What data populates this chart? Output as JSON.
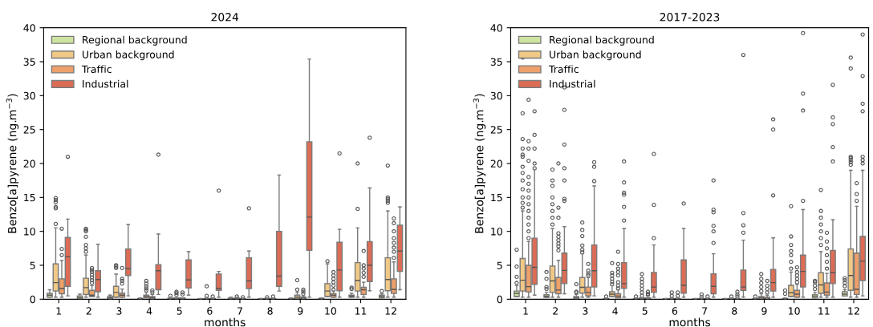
{
  "chart_data": [
    {
      "type": "box",
      "title": "2024",
      "xlabel": "months",
      "ylabel": "Benzo[a]pyrene (ng.m$^{−3}$)",
      "categories": [
        "1",
        "2",
        "3",
        "4",
        "5",
        "6",
        "7",
        "8",
        "9",
        "10",
        "11",
        "12"
      ],
      "ylim": [
        0,
        40
      ],
      "yticks": [
        0,
        5,
        10,
        15,
        20,
        25,
        30,
        35,
        40
      ],
      "legend": "top left",
      "grid": false,
      "series": [
        {
          "name": "Regional background",
          "color": "#cfe3a0",
          "boxes": [
            {
              "low": 0.3,
              "q1": 0.3,
              "median": 0.6,
              "q3": 0.87,
              "high": 1.4
            },
            {
              "low": 0.1,
              "q1": 0.1,
              "median": 0.25,
              "q3": 0.5,
              "high": 0.75
            },
            {
              "low": 0.05,
              "q1": 0.05,
              "median": 0.2,
              "q3": 0.4,
              "high": 0.6
            },
            {
              "low": 0.02,
              "q1": 0.02,
              "median": 0.05,
              "q3": 0.1,
              "high": 0.2
            },
            {
              "low": 0.02,
              "q1": 0.02,
              "median": 0.05,
              "q3": 0.15,
              "high": 0.3,
              "outliers": [
                0.5
              ]
            },
            {
              "low": 0,
              "q1": 0,
              "median": 0.02,
              "q3": 0.05,
              "high": 0.1
            },
            {
              "low": 0.02,
              "q1": 0.02,
              "median": 0.05,
              "q3": 0.15,
              "high": 0.3
            },
            {
              "low": 0.01,
              "q1": 0.01,
              "median": 0.03,
              "q3": 0.06,
              "high": 0.1
            },
            {
              "low": 0.02,
              "q1": 0.02,
              "median": 0.05,
              "q3": 0.1,
              "high": 0.2
            },
            {
              "low": 0.02,
              "q1": 0.02,
              "median": 0.05,
              "q3": 0.12,
              "high": 0.2
            },
            {
              "low": 0.3,
              "q1": 0.3,
              "median": 0.45,
              "q3": 0.6,
              "high": 0.9,
              "outliers": [
                1.5,
                1.7
              ]
            },
            {
              "low": 0.2,
              "q1": 0.2,
              "median": 0.4,
              "q3": 0.6,
              "high": 0.8,
              "outliers": [
                1.2
              ]
            }
          ]
        },
        {
          "name": "Urban background",
          "color": "#f1c986",
          "boxes": [
            {
              "low": 0.3,
              "q1": 1.2,
              "median": 2.45,
              "q3": 5.2,
              "high": 10.5,
              "outliers": [
                11.1,
                13.4,
                13.6,
                14.3,
                14.6,
                14.9
              ]
            },
            {
              "low": 0.3,
              "q1": 0.7,
              "median": 1.7,
              "q3": 3.1,
              "high": 6.5,
              "outliers": [
                7.0,
                7.5,
                8.0,
                9.2,
                10.0,
                10.2,
                10.4
              ]
            },
            {
              "low": 0.3,
              "q1": 0.3,
              "median": 1.0,
              "q3": 1.9,
              "high": 3.7,
              "outliers": [
                4.6,
                4.8,
                5.0
              ]
            },
            {
              "low": 0.2,
              "q1": 0.2,
              "median": 0.4,
              "q3": 0.6,
              "high": 1.0,
              "outliers": [
                1.3,
                1.6,
                1.9,
                2.3,
                2.7
              ]
            },
            {
              "low": 0.02,
              "q1": 0.02,
              "median": 0.1,
              "q3": 0.2,
              "high": 0.2,
              "outliers": [
                0.6,
                0.9,
                1.1
              ]
            },
            {
              "low": 0.02,
              "q1": 0.02,
              "median": 0.05,
              "q3": 0.1,
              "high": 0.2,
              "outliers": [
                0.5,
                1.9
              ]
            },
            {
              "low": 0.02,
              "q1": 0.02,
              "median": 0.05,
              "q3": 0.15,
              "high": 0.3,
              "outliers": [
                0.4
              ]
            },
            {
              "low": 0.02,
              "q1": 0.02,
              "median": 0.05,
              "q3": 0.1,
              "high": 0.2,
              "outliers": [
                0.3
              ]
            },
            {
              "low": 0.1,
              "q1": 0.1,
              "median": 0.3,
              "q3": 0.6,
              "high": 1.0,
              "outliers": [
                1.4,
                2.8
              ]
            },
            {
              "low": 0.4,
              "q1": 0.4,
              "median": 1.2,
              "q3": 2.3,
              "high": 5.2,
              "outliers": [
                5.6
              ]
            },
            {
              "low": 0.3,
              "q1": 1.2,
              "median": 2.75,
              "q3": 5.4,
              "high": 10.5,
              "outliers": [
                13.3,
                20.0
              ]
            },
            {
              "low": 0.3,
              "q1": 1.25,
              "median": 2.9,
              "q3": 6.1,
              "high": 13.0,
              "outliers": [
                14.2,
                14.5,
                14.8,
                15.0,
                19.7
              ]
            }
          ]
        },
        {
          "name": "Traffic",
          "color": "#eea06a",
          "boxes": [
            {
              "low": 0.3,
              "q1": 0.8,
              "median": 1.57,
              "q3": 3.0,
              "high": 5.7,
              "outliers": [
                6.5,
                7.4,
                10.4
              ]
            },
            {
              "low": 0.4,
              "q1": 0.4,
              "median": 0.6,
              "q3": 1.3,
              "high": 2.0,
              "outliers": [
                2.4,
                2.8,
                3.2,
                3.6,
                4.0,
                4.3,
                4.6
              ]
            },
            {
              "low": 0.3,
              "q1": 0.3,
              "median": 0.6,
              "q3": 0.9,
              "high": 1.5,
              "outliers": [
                2.3,
                2.7,
                3.0,
                4.6
              ]
            },
            {
              "low": 0.05,
              "q1": 0.05,
              "median": 0.2,
              "q3": 0.4,
              "high": 0.7,
              "outliers": [
                1.0,
                1.3
              ]
            },
            {
              "low": 0.02,
              "q1": 0.02,
              "median": 0.1,
              "q3": 0.2,
              "high": 0.2,
              "outliers": [
                0.7,
                1.0
              ]
            },
            {
              "low": 0.02,
              "q1": 0.02,
              "median": 0.05,
              "q3": 0.1,
              "high": 0.2,
              "outliers": [
                0.4
              ]
            },
            {
              "low": 0.02,
              "q1": 0.02,
              "median": 0.05,
              "q3": 0.1,
              "high": 0.2,
              "outliers": [
                0.3
              ]
            },
            {
              "low": 0.02,
              "q1": 0.02,
              "median": 0.05,
              "q3": 0.1,
              "high": 0.2,
              "outliers": [
                0.4
              ]
            },
            {
              "low": 0.05,
              "q1": 0.05,
              "median": 0.15,
              "q3": 0.3,
              "high": 0.5,
              "outliers": [
                0.8,
                1.1,
                1.4
              ]
            },
            {
              "low": 0.3,
              "q1": 0.3,
              "median": 0.6,
              "q3": 0.85,
              "high": 1.2,
              "outliers": [
                1.4,
                2.0,
                2.5,
                3.0,
                3.5,
                4.0
              ]
            },
            {
              "low": 0.3,
              "q1": 0.7,
              "median": 1.4,
              "q3": 1.75,
              "high": 2.5,
              "outliers": [
                3.3,
                3.9,
                4.5,
                5.0,
                7.1
              ]
            },
            {
              "low": 0.3,
              "q1": 0.85,
              "median": 1.45,
              "q3": 3.0,
              "high": 5.5,
              "outliers": [
                6.1,
                7.0,
                7.6,
                8.3,
                9.0,
                10.0,
                11.2,
                11.9
              ]
            }
          ]
        },
        {
          "name": "Industrial",
          "color": "#dc6c55",
          "boxes": [
            {
              "low": 0.5,
              "q1": 1.9,
              "median": 6.26,
              "q3": 9.1,
              "high": 11.8,
              "outliers": [
                21.0
              ]
            },
            {
              "low": 0.3,
              "q1": 1.1,
              "median": 2.9,
              "q3": 4.2,
              "high": 8.1
            },
            {
              "low": 0.5,
              "q1": 3.5,
              "median": 4.5,
              "q3": 7.4,
              "high": 11.0
            },
            {
              "low": 0.7,
              "q1": 1.4,
              "median": 4.2,
              "q3": 5.1,
              "high": 9.6,
              "outliers": [
                21.3
              ]
            },
            {
              "low": 0.6,
              "q1": 1.65,
              "median": 2.85,
              "q3": 5.8,
              "high": 7.0
            },
            {
              "low": 0.3,
              "q1": 1.3,
              "median": 1.6,
              "q3": 3.7,
              "high": 4.1,
              "outliers": [
                16.0
              ]
            },
            {
              "low": 0.3,
              "q1": 1.57,
              "median": 2.7,
              "q3": 6.1,
              "high": 7.1,
              "outliers": [
                13.4
              ]
            },
            {
              "low": 1.2,
              "q1": 1.9,
              "median": 3.4,
              "q3": 10.0,
              "high": 18.3
            },
            {
              "low": 0.3,
              "q1": 7.2,
              "median": 12.1,
              "q3": 23.2,
              "high": 35.4
            },
            {
              "low": 0.3,
              "q1": 1.25,
              "median": 4.3,
              "q3": 8.4,
              "high": 10.3,
              "outliers": [
                21.5
              ]
            },
            {
              "low": 1.25,
              "q1": 2.6,
              "median": 5.0,
              "q3": 8.5,
              "high": 16.4,
              "outliers": [
                23.8
              ]
            },
            {
              "low": 1.4,
              "q1": 4.1,
              "median": 7.1,
              "q3": 10.9,
              "high": 13.6
            }
          ]
        }
      ]
    },
    {
      "type": "box",
      "title": "2017-2023",
      "xlabel": "months",
      "ylabel": "Benzo[a]pyrene (ng.m$^{−3}$)",
      "categories": [
        "1",
        "2",
        "3",
        "4",
        "5",
        "6",
        "7",
        "8",
        "9",
        "10",
        "11",
        "12"
      ],
      "ylim": [
        0,
        40
      ],
      "yticks": [
        0,
        5,
        10,
        15,
        20,
        25,
        30,
        35,
        40
      ],
      "legend": "top left",
      "grid": false,
      "series": [
        {
          "name": "Regional background",
          "color": "#cfe3a0",
          "boxes": [
            {
              "low": 0.4,
              "q1": 0.4,
              "median": 0.87,
              "q3": 1.2,
              "high": 2.0,
              "outliers": [
                2.4,
                3.3,
                4.8,
                7.3
              ]
            },
            {
              "low": 0.28,
              "q1": 0.28,
              "median": 0.45,
              "q3": 0.67,
              "high": 1.0,
              "outliers": [
                1.5,
                1.8,
                3.0,
                4.0
              ]
            },
            {
              "low": 0.1,
              "q1": 0.1,
              "median": 0.2,
              "q3": 0.4,
              "high": 0.7,
              "outliers": [
                1.0,
                1.1,
                2.2
              ]
            },
            {
              "low": 0.02,
              "q1": 0.02,
              "median": 0.05,
              "q3": 0.1,
              "high": 0.2,
              "outliers": [
                0.4
              ]
            },
            {
              "low": 0.02,
              "q1": 0.02,
              "median": 0.05,
              "q3": 0.1,
              "high": 0.2,
              "outliers": [
                0.4
              ]
            },
            {
              "low": 0.01,
              "q1": 0.01,
              "median": 0.03,
              "q3": 0.06,
              "high": 0.1
            },
            {
              "low": 0.01,
              "q1": 0.01,
              "median": 0.03,
              "q3": 0.06,
              "high": 0.1
            },
            {
              "low": 0.01,
              "q1": 0.01,
              "median": 0.03,
              "q3": 0.06,
              "high": 0.1
            },
            {
              "low": 0.02,
              "q1": 0.02,
              "median": 0.05,
              "q3": 0.1,
              "high": 0.2,
              "outliers": [
                0.4
              ]
            },
            {
              "low": 0.02,
              "q1": 0.02,
              "median": 0.05,
              "q3": 0.1,
              "high": 0.2,
              "outliers": [
                0.8,
                1.3
              ]
            },
            {
              "low": 0.2,
              "q1": 0.2,
              "median": 0.45,
              "q3": 0.67,
              "high": 1.0,
              "outliers": [
                1.5,
                2.0,
                2.5,
                2.7
              ]
            },
            {
              "low": 0.47,
              "q1": 0.47,
              "median": 0.75,
              "q3": 1.1,
              "high": 1.4,
              "outliers": [
                1.9,
                2.4,
                2.8,
                3.1
              ]
            }
          ]
        },
        {
          "name": "Urban background",
          "color": "#f1c986",
          "boxes": [
            {
              "low": 0.3,
              "q1": 1.2,
              "median": 2.8,
              "q3": 6.0,
              "high": 13.0,
              "outliers": [
                13.5,
                14.2,
                15.0,
                16.2,
                17.5,
                18.6,
                19.5,
                21.0,
                21.3,
                22.2,
                23.6,
                27.4,
                35.6
              ]
            },
            {
              "low": 0.3,
              "q1": 1.0,
              "median": 2.7,
              "q3": 4.9,
              "high": 10.4,
              "outliers": [
                11.0,
                12.0,
                13.0,
                14.0,
                15.0,
                16.7,
                17.5,
                19.1
              ]
            },
            {
              "low": 0.3,
              "q1": 0.9,
              "median": 1.75,
              "q3": 3.2,
              "high": 6.7,
              "outliers": [
                6.9,
                7.3,
                7.9,
                9.3,
                10.2,
                11.3
              ]
            },
            {
              "low": 0.4,
              "q1": 0.4,
              "median": 0.75,
              "q3": 1.1,
              "high": 2.0,
              "outliers": [
                2.2,
                2.6,
                3.0,
                3.5,
                3.9,
                5.3
              ]
            },
            {
              "low": 0.05,
              "q1": 0.05,
              "median": 0.1,
              "q3": 0.2,
              "high": 0.2,
              "outliers": [
                0.5,
                1.0,
                1.5,
                2.0,
                2.5,
                3.0,
                3.7
              ]
            },
            {
              "low": 0.02,
              "q1": 0.02,
              "median": 0.05,
              "q3": 0.1,
              "high": 0.2,
              "outliers": [
                0.5,
                1.0
              ]
            },
            {
              "low": 0.02,
              "q1": 0.02,
              "median": 0.05,
              "q3": 0.1,
              "high": 0.2,
              "outliers": [
                0.3,
                0.7
              ]
            },
            {
              "low": 0.02,
              "q1": 0.02,
              "median": 0.05,
              "q3": 0.1,
              "high": 0.2,
              "outliers": [
                0.4
              ]
            },
            {
              "low": 0.1,
              "q1": 0.1,
              "median": 0.2,
              "q3": 0.4,
              "high": 0.8,
              "outliers": [
                1.2,
                1.8,
                2.4,
                3.0,
                3.7
              ]
            },
            {
              "low": 0.4,
              "q1": 0.4,
              "median": 0.95,
              "q3": 2.05,
              "high": 4.0,
              "outliers": [
                4.5,
                5.5,
                6.5,
                7.1,
                8.0,
                9.25,
                13.7
              ]
            },
            {
              "low": 0.3,
              "q1": 0.87,
              "median": 2.1,
              "q3": 3.9,
              "high": 7.0,
              "outliers": [
                8.0,
                9.0,
                10.0,
                11.0,
                12.0,
                13.0,
                16.1
              ]
            },
            {
              "low": 0.3,
              "q1": 1.3,
              "median": 3.5,
              "q3": 7.4,
              "high": 19.0,
              "outliers": [
                19.8,
                20.2,
                20.5,
                20.8,
                21.0,
                34.0,
                35.6
              ]
            }
          ]
        },
        {
          "name": "Traffic",
          "color": "#eea06a",
          "boxes": [
            {
              "low": 0.3,
              "q1": 1.06,
              "median": 1.85,
              "q3": 5.0,
              "high": 8.5,
              "outliers": [
                9.0,
                10.0,
                11.0,
                12.0,
                13.0,
                14.0,
                15.0,
                16.0,
                17.0,
                18.0,
                20.4,
                22.2,
                23.3,
                29.4
              ]
            },
            {
              "low": 0.3,
              "q1": 0.8,
              "median": 1.35,
              "q3": 3.2,
              "high": 5.7,
              "outliers": [
                7.2,
                7.8,
                8.2,
                8.7,
                9.2,
                9.7,
                12.0,
                13.5,
                20.0
              ]
            },
            {
              "low": 0.3,
              "q1": 0.5,
              "median": 1.0,
              "q3": 1.8,
              "high": 3.2,
              "outliers": [
                3.5,
                3.8,
                4.2,
                5.2
              ]
            },
            {
              "low": 0.2,
              "q1": 0.2,
              "median": 0.45,
              "q3": 0.8,
              "high": 1.4,
              "outliers": [
                1.6,
                2.0,
                2.5,
                3.5,
                4.0,
                4.5,
                5.2,
                7.0
              ]
            },
            {
              "low": 0.02,
              "q1": 0.02,
              "median": 0.1,
              "q3": 0.2,
              "high": 0.2,
              "outliers": [
                0.6,
                0.8,
                1.1
              ]
            },
            {
              "low": 0.02,
              "q1": 0.02,
              "median": 0.05,
              "q3": 0.1,
              "high": 0.2,
              "outliers": [
                0.5,
                1.0
              ]
            },
            {
              "low": 0.02,
              "q1": 0.02,
              "median": 0.05,
              "q3": 0.1,
              "high": 0.2,
              "outliers": [
                0.4
              ]
            },
            {
              "low": 0.02,
              "q1": 0.02,
              "median": 0.05,
              "q3": 0.1,
              "high": 0.2,
              "outliers": [
                0.4,
                0.7,
                1.1
              ]
            },
            {
              "low": 0.05,
              "q1": 0.05,
              "median": 0.1,
              "q3": 0.3,
              "high": 0.6,
              "outliers": [
                1.0,
                1.5,
                2.0,
                2.7
              ]
            },
            {
              "low": 0.3,
              "q1": 0.3,
              "median": 0.75,
              "q3": 1.3,
              "high": 2.2,
              "outliers": [
                2.5,
                3.0,
                3.5,
                4.0,
                4.7
              ]
            },
            {
              "low": 0.3,
              "q1": 0.6,
              "median": 1.05,
              "q3": 2.4,
              "high": 3.8,
              "outliers": [
                4.5,
                5.5,
                6.5,
                7.5,
                8.5,
                9.8
              ]
            },
            {
              "low": 0.3,
              "q1": 0.7,
              "median": 1.45,
              "q3": 6.8,
              "high": 13.7,
              "outliers": [
                14.5,
                15.5,
                17.1
              ]
            }
          ]
        },
        {
          "name": "Industrial",
          "color": "#dc6c55",
          "boxes": [
            {
              "low": 0.6,
              "q1": 2.2,
              "median": 4.7,
              "q3": 9.0,
              "high": 19.1,
              "outliers": [
                19.3,
                20.0,
                22.2,
                24.2,
                27.7
              ]
            },
            {
              "low": 0.8,
              "q1": 2.3,
              "median": 4.25,
              "q3": 6.8,
              "high": 10.7,
              "outliers": [
                14.5,
                14.8,
                17.5,
                19.3,
                22.8,
                27.9,
                31.2
              ]
            },
            {
              "low": 0.5,
              "q1": 1.8,
              "median": 4.2,
              "q3": 8.0,
              "high": 16.7,
              "outliers": [
                17.4,
                19.5,
                20.2
              ]
            },
            {
              "low": 0.3,
              "q1": 1.6,
              "median": 2.3,
              "q3": 5.4,
              "high": 10.4,
              "outliers": [
                11.6,
                13.6,
                15.4,
                15.7,
                17.2,
                20.3
              ]
            },
            {
              "low": 0.3,
              "q1": 1.0,
              "median": 1.8,
              "q3": 3.95,
              "high": 8.0,
              "outliers": [
                9.0,
                13.9,
                21.4
              ]
            },
            {
              "low": 0.3,
              "q1": 0.9,
              "median": 2.05,
              "q3": 5.8,
              "high": 10.4,
              "outliers": [
                14.1
              ]
            },
            {
              "low": 0.3,
              "q1": 0.8,
              "median": 1.9,
              "q3": 3.74,
              "high": 6.7,
              "outliers": [
                8.3,
                10.0,
                10.8,
                12.8,
                13.2,
                17.5
              ]
            },
            {
              "low": 0.3,
              "q1": 1.3,
              "median": 1.8,
              "q3": 4.3,
              "high": 8.7,
              "outliers": [
                9.8,
                10.9,
                12.7,
                36.0
              ]
            },
            {
              "low": 0.3,
              "q1": 1.2,
              "median": 2.45,
              "q3": 4.4,
              "high": 9.05,
              "outliers": [
                15.3,
                25.0,
                26.5
              ]
            },
            {
              "low": 0.3,
              "q1": 1.8,
              "median": 4.1,
              "q3": 6.5,
              "high": 13.2,
              "outliers": [
                14.5,
                27.8,
                30.3,
                39.2
              ]
            },
            {
              "low": 0.3,
              "q1": 2.3,
              "median": 3.9,
              "q3": 7.2,
              "high": 11.7,
              "outliers": [
                20.3,
                22.4,
                25.8,
                26.8,
                31.6
              ]
            },
            {
              "low": 0.5,
              "q1": 2.75,
              "median": 5.6,
              "q3": 9.25,
              "high": 19.0,
              "outliers": [
                20.0,
                20.5,
                21.0,
                27.7,
                28.8,
                32.9,
                39.0
              ]
            }
          ]
        }
      ]
    }
  ]
}
